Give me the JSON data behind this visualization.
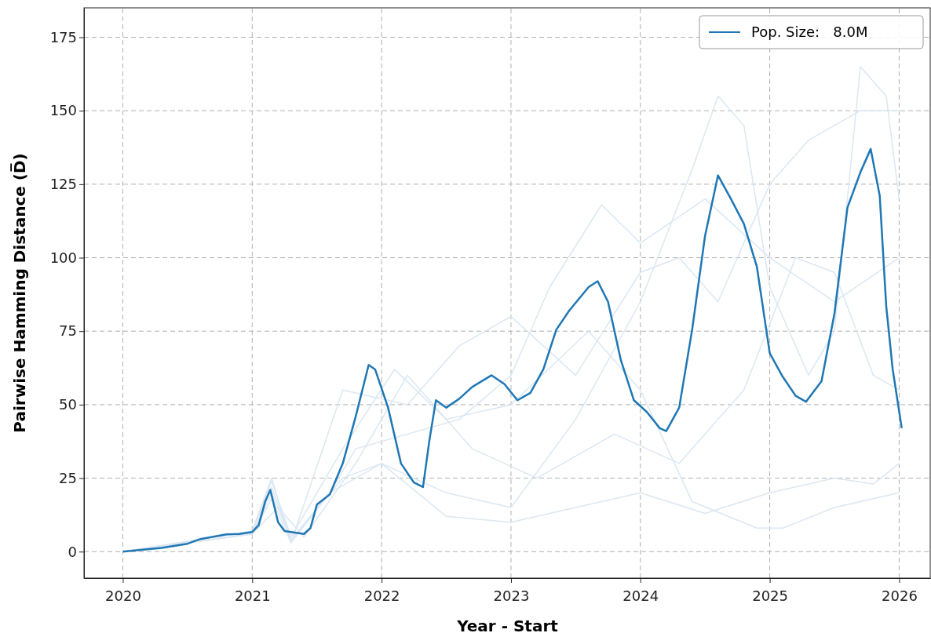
{
  "chart_data": {
    "type": "line",
    "xlabel": "Year - Start",
    "ylabel": "Pairwise Hamming Distance (D̅)",
    "xlim": [
      2019.7,
      2026.24
    ],
    "ylim": [
      -9,
      185
    ],
    "xticks": [
      2020,
      2021,
      2022,
      2023,
      2024,
      2025,
      2026
    ],
    "yticks": [
      0,
      25,
      50,
      75,
      100,
      125,
      150,
      175
    ],
    "grid": true,
    "legend": "top right",
    "line_style": "solid",
    "marker": "none",
    "series": [
      {
        "color": "#dbe7f2",
        "x": [
          2020,
          2021,
          2021.15,
          2021.3,
          2021.6,
          2021.8,
          2022.2,
          2022.6,
          2023,
          2023.3,
          2023.7,
          2024,
          2024.5,
          2025,
          2025.5,
          2026
        ],
        "values": [
          0,
          7,
          25,
          3,
          20,
          35,
          40,
          45,
          60,
          90,
          118,
          105,
          120,
          100,
          85,
          100
        ]
      },
      {
        "color": "#dbe7f2",
        "x": [
          2020,
          2021,
          2021.15,
          2021.3,
          2021.7,
          2022,
          2022.5,
          2023,
          2023.5,
          2024,
          2024.4,
          2024.6,
          2024.8,
          2025,
          2025.3,
          2025.5,
          2025.7,
          2025.9,
          2026
        ],
        "values": [
          0,
          6,
          22,
          4,
          25,
          30,
          20,
          15,
          45,
          85,
          130,
          155,
          145,
          90,
          60,
          75,
          165,
          155,
          120
        ]
      },
      {
        "color": "#dbe7f2",
        "x": [
          2020,
          2021,
          2021.15,
          2021.3,
          2021.6,
          2022,
          2022.5,
          2023,
          2023.5,
          2024,
          2024.5,
          2025,
          2025.5,
          2025.8,
          2026
        ],
        "values": [
          0,
          6,
          20,
          4,
          20,
          30,
          12,
          10,
          15,
          20,
          13,
          20,
          25,
          23,
          30
        ]
      },
      {
        "color": "#dbe7f2",
        "x": [
          2020,
          2021,
          2021.15,
          2021.3,
          2021.7,
          2022.2,
          2022.6,
          2023,
          2023.5,
          2024,
          2024.3,
          2024.6,
          2025,
          2025.3,
          2025.7,
          2026
        ],
        "values": [
          0,
          6,
          18,
          3,
          55,
          50,
          70,
          80,
          60,
          95,
          100,
          85,
          125,
          140,
          150,
          150
        ]
      },
      {
        "color": "#dbe7f2",
        "x": [
          2020,
          2021,
          2021.2,
          2021.4,
          2021.8,
          2022.2,
          2022.7,
          2023.2,
          2023.8,
          2024.3,
          2024.8,
          2025.2,
          2025.5,
          2025.8,
          2026
        ],
        "values": [
          0,
          6,
          15,
          5,
          30,
          60,
          35,
          25,
          40,
          30,
          55,
          100,
          95,
          60,
          55
        ]
      },
      {
        "color": "#dbe7f2",
        "x": [
          2020,
          2021,
          2021.15,
          2021.3,
          2021.7,
          2022.1,
          2022.5,
          2023,
          2023.6,
          2024,
          2024.4,
          2024.9,
          2025.1,
          2025.5,
          2026
        ],
        "values": [
          0,
          7,
          24,
          5,
          35,
          62,
          45,
          50,
          75,
          55,
          17,
          8,
          8,
          15,
          20
        ]
      },
      {
        "name": "Pop. Size:   8.0M",
        "color": "#1f77b4",
        "x": [
          2020,
          2020.3,
          2020.5,
          2020.6,
          2020.8,
          2020.9,
          2021,
          2021.05,
          2021.1,
          2021.14,
          2021.2,
          2021.25,
          2021.4,
          2021.45,
          2021.5,
          2021.6,
          2021.7,
          2021.8,
          2021.9,
          2021.95,
          2022.05,
          2022.15,
          2022.25,
          2022.32,
          2022.37,
          2022.42,
          2022.5,
          2022.6,
          2022.7,
          2022.85,
          2022.95,
          2023.05,
          2023.15,
          2023.25,
          2023.35,
          2023.45,
          2023.6,
          2023.67,
          2023.75,
          2023.85,
          2023.95,
          2024.05,
          2024.15,
          2024.2,
          2024.3,
          2024.4,
          2024.5,
          2024.6,
          2024.7,
          2024.8,
          2024.9,
          2025,
          2025.1,
          2025.2,
          2025.28,
          2025.4,
          2025.5,
          2025.6,
          2025.7,
          2025.78,
          2025.85,
          2025.9,
          2025.95,
          2026.02
        ],
        "values": [
          0,
          1.3,
          2.7,
          4.3,
          5.9,
          6,
          6.7,
          9,
          17,
          21,
          10,
          7,
          6,
          8,
          16,
          19.5,
          30,
          46,
          63.5,
          62,
          49,
          30,
          23.5,
          22,
          38,
          51.5,
          49,
          52,
          56,
          60,
          57,
          51.5,
          54,
          62,
          75.5,
          82,
          90,
          92,
          85,
          65,
          51.5,
          47.5,
          42,
          41,
          49,
          75.5,
          107.5,
          128,
          120,
          111.5,
          97,
          67.5,
          59.5,
          53,
          51,
          58,
          81,
          117,
          129,
          137,
          121,
          83.5,
          62,
          42
        ]
      }
    ]
  }
}
